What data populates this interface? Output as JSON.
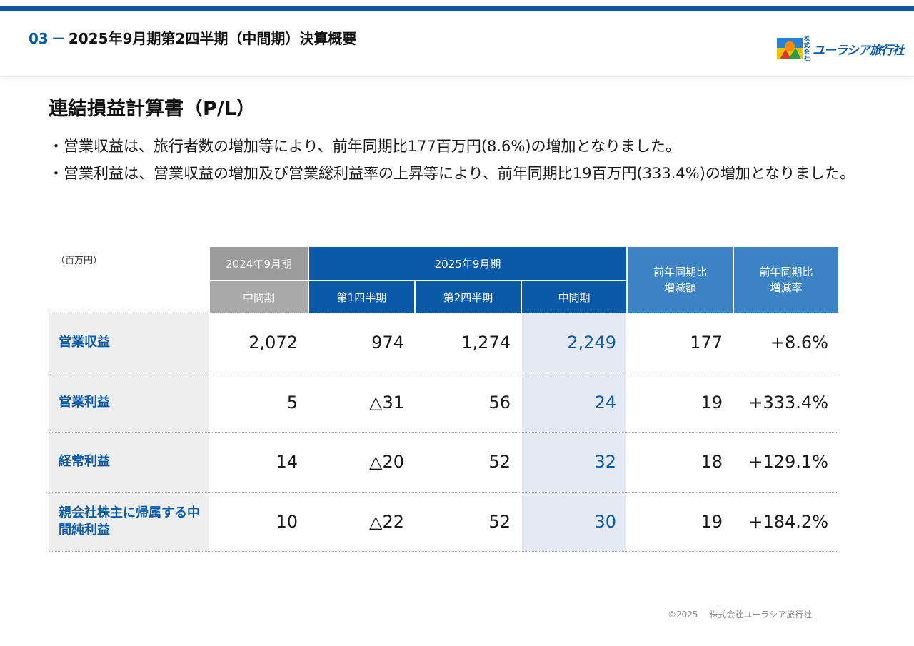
{
  "header": {
    "section_number": "03",
    "section_dash": "－",
    "section_title": "2025年9月期第2四半期（中間期）決算概要",
    "logo_small_text": "株式会社",
    "logo_text": "ユーラシア旅行社"
  },
  "page_title": "連結損益計算書（P/L）",
  "bullets": [
    "・営業収益は、旅行者数の増加等により、前年同期比177百万円(8.6%)の増加となりました。",
    "・営業利益は、営業収益の増加及び営業総利益率の上昇等により、前年同期比19百万円(333.4%)の増加となりました。"
  ],
  "table": {
    "unit": "（百万円）",
    "header": {
      "prev_year": "2024年9月期",
      "prev_period": "中間期",
      "cur_year": "2025年9月期",
      "q1": "第1四半期",
      "q2": "第2四半期",
      "cur_period": "中間期",
      "diff_amount": "前年同期比\n増減額",
      "diff_rate": "前年同期比\n増減率"
    },
    "rows": [
      {
        "label": "営業収益",
        "prev": "2,072",
        "q1": "974",
        "q2": "1,274",
        "cur": "2,249",
        "diff": "177",
        "rate": "+8.6%"
      },
      {
        "label": "営業利益",
        "prev": "5",
        "q1": "△31",
        "q2": "56",
        "cur": "24",
        "diff": "19",
        "rate": "+333.4%"
      },
      {
        "label": "経常利益",
        "prev": "14",
        "q1": "△20",
        "q2": "52",
        "cur": "32",
        "diff": "18",
        "rate": "+129.1%"
      },
      {
        "label": "親会社株主に帰属する中間純利益",
        "prev": "10",
        "q1": "△22",
        "q2": "52",
        "cur": "30",
        "diff": "19",
        "rate": "+184.2%"
      }
    ]
  },
  "footer": "©2025　 株式会社ユーラシア旅行社",
  "colors": {
    "brand_blue": "#0a5aa8",
    "header_light_blue": "#3c83c6",
    "highlight": "#e4e9f4"
  }
}
